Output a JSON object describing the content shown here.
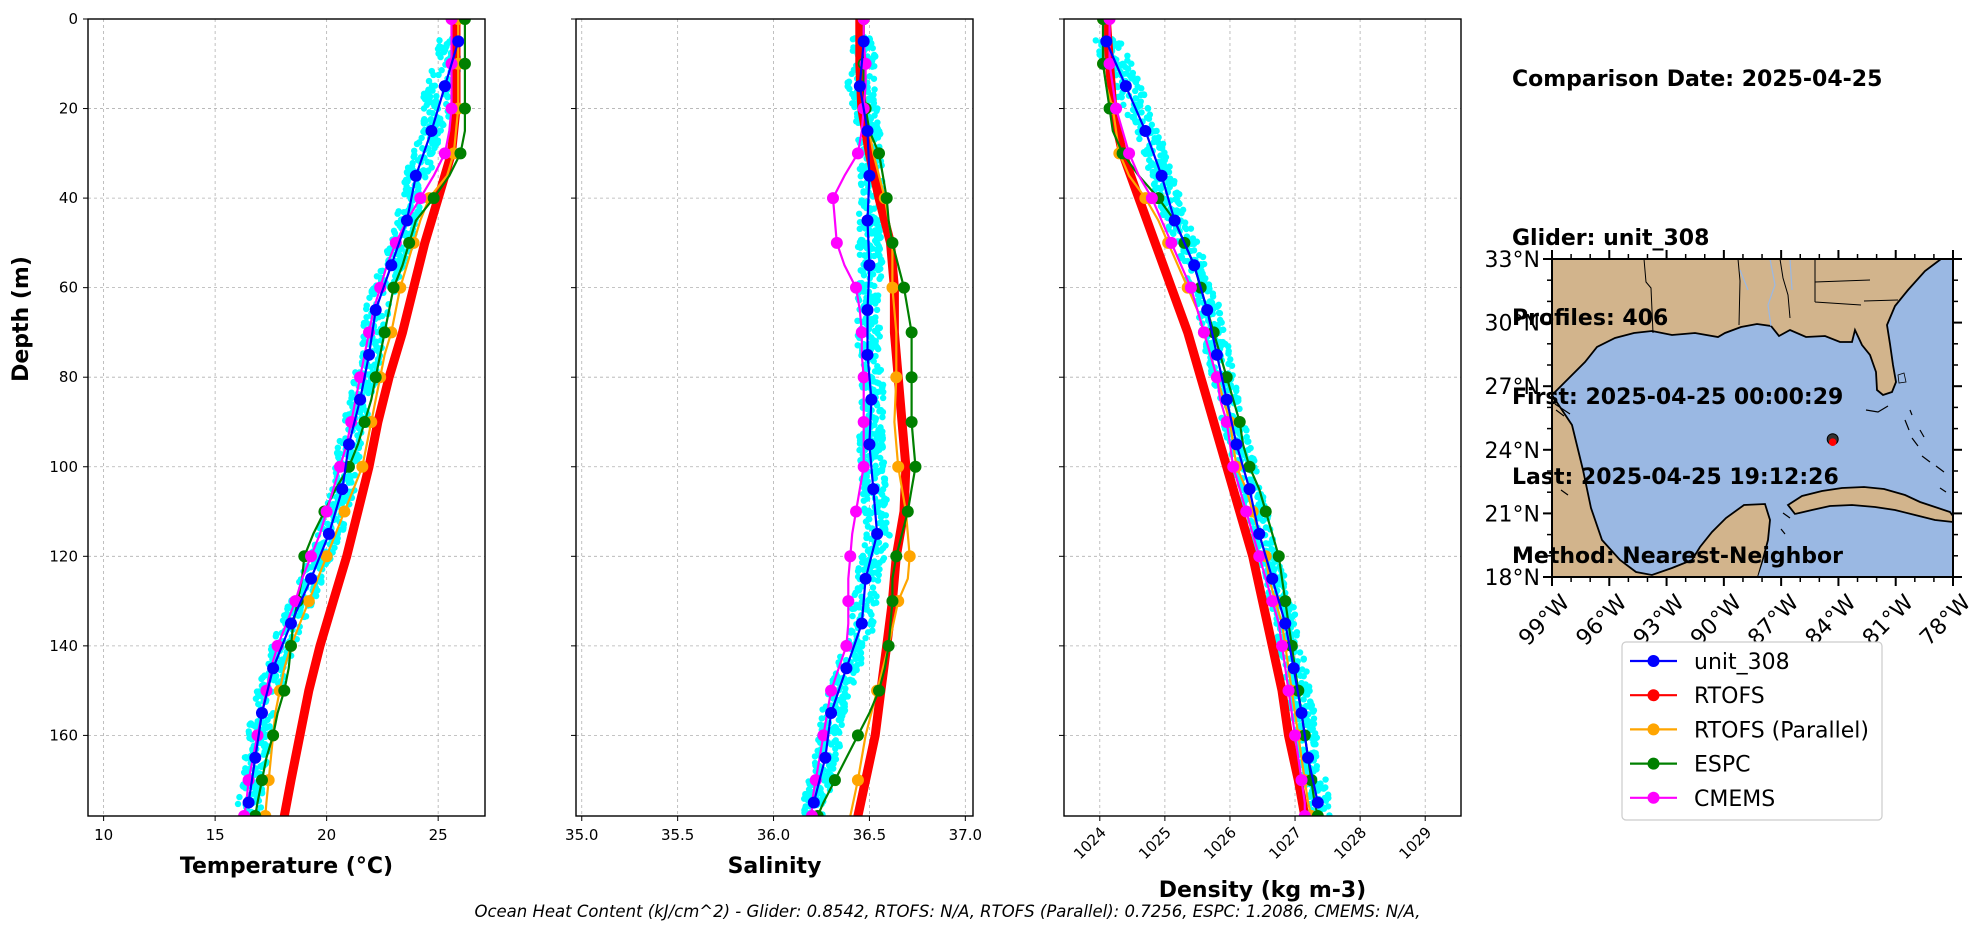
{
  "info": {
    "comparison_date": "Comparison Date: 2025-04-25",
    "glider": "Glider: unit_308",
    "profiles": "Profiles: 406",
    "first": "First: 2025-04-25 00:00:29",
    "last": "Last: 2025-04-25 19:12:26",
    "method": "Method: Nearest-Neighbor"
  },
  "footer": "Ocean Heat Content (kJ/cm^2) - Glider: 0.8542,  RTOFS: N/A,  RTOFS (Parallel): 0.7256,  ESPC: 1.2086,  CMEMS: N/A,",
  "colors": {
    "scatter": "#00ffff",
    "unit_308": "#0000ff",
    "RTOFS": "#ff0000",
    "RTOFS (Parallel)": "#ffa500",
    "ESPC": "#008000",
    "CMEMS": "#ff00ff",
    "land": "#d2b48c",
    "water": "#9ab8e3"
  },
  "legend": [
    "unit_308",
    "RTOFS",
    "RTOFS (Parallel)",
    "ESPC",
    "CMEMS"
  ],
  "chart_data": [
    {
      "type": "line",
      "xlabel": "Temperature (°C)",
      "ylabel": "Depth (m)",
      "xlim": [
        9.3,
        27.1
      ],
      "ylim": [
        178,
        0
      ],
      "xticks": [
        "10",
        "15",
        "20",
        "25"
      ],
      "yticks": [
        "0",
        "20",
        "40",
        "60",
        "80",
        "100",
        "120",
        "140",
        "160"
      ],
      "grid": true,
      "series": [
        {
          "name": "unit_308",
          "depth": [
            5,
            15,
            25,
            35,
            45,
            55,
            65,
            75,
            85,
            95,
            105,
            115,
            125,
            135,
            145,
            155,
            165,
            175
          ],
          "values": [
            25.9,
            25.3,
            24.7,
            24.0,
            23.6,
            22.9,
            22.2,
            21.9,
            21.5,
            21.0,
            20.7,
            20.1,
            19.3,
            18.4,
            17.6,
            17.1,
            16.8,
            16.5
          ]
        },
        {
          "name": "RTOFS",
          "depth": [
            0,
            10,
            20,
            30,
            40,
            50,
            60,
            70,
            80,
            90,
            100,
            110,
            120,
            130,
            140,
            150,
            160,
            170,
            178
          ],
          "values": [
            25.8,
            25.8,
            25.8,
            25.6,
            25.0,
            24.4,
            23.9,
            23.4,
            22.8,
            22.3,
            21.9,
            21.4,
            20.9,
            20.3,
            19.7,
            19.2,
            18.8,
            18.4,
            18.1
          ]
        },
        {
          "name": "RTOFS (Parallel)",
          "depth": [
            0,
            5,
            10,
            15,
            20,
            25,
            30,
            35,
            40,
            45,
            50,
            55,
            60,
            65,
            70,
            75,
            80,
            85,
            90,
            95,
            100,
            105,
            110,
            115,
            120,
            125,
            130,
            135,
            140,
            145,
            150,
            155,
            160,
            165,
            170,
            175,
            178
          ],
          "values": [
            25.9,
            25.9,
            25.9,
            25.9,
            25.9,
            25.8,
            25.7,
            25.4,
            24.6,
            24.2,
            23.9,
            23.6,
            23.3,
            23.1,
            22.9,
            22.6,
            22.4,
            22.2,
            22.0,
            21.8,
            21.6,
            21.2,
            20.8,
            20.4,
            20.0,
            19.6,
            19.2,
            18.8,
            18.4,
            18.1,
            17.9,
            17.7,
            17.6,
            17.5,
            17.4,
            17.3,
            17.25
          ]
        },
        {
          "name": "ESPC",
          "depth": [
            0,
            5,
            10,
            15,
            20,
            25,
            30,
            35,
            40,
            45,
            50,
            55,
            60,
            65,
            70,
            75,
            80,
            85,
            90,
            95,
            100,
            105,
            110,
            115,
            120,
            125,
            130,
            135,
            140,
            145,
            150,
            155,
            160,
            165,
            170,
            175,
            178
          ],
          "values": [
            26.2,
            26.2,
            26.2,
            26.2,
            26.2,
            26.2,
            26.0,
            25.5,
            24.8,
            24.0,
            23.7,
            23.4,
            23.0,
            22.8,
            22.6,
            22.4,
            22.2,
            22.0,
            21.7,
            21.4,
            21.0,
            20.4,
            19.9,
            19.4,
            19.0,
            18.9,
            18.7,
            18.5,
            18.4,
            18.3,
            18.1,
            17.8,
            17.6,
            17.3,
            17.1,
            16.9,
            16.8
          ]
        },
        {
          "name": "CMEMS",
          "depth": [
            0,
            5,
            10,
            15,
            20,
            25,
            30,
            35,
            40,
            45,
            50,
            55,
            60,
            65,
            70,
            75,
            80,
            85,
            90,
            95,
            100,
            105,
            110,
            115,
            120,
            125,
            130,
            135,
            140,
            145,
            150,
            155,
            160,
            165,
            170,
            175,
            178
          ],
          "values": [
            25.6,
            25.6,
            25.6,
            25.6,
            25.6,
            25.5,
            25.3,
            24.8,
            24.2,
            23.6,
            23.1,
            22.7,
            22.4,
            22.1,
            21.9,
            21.7,
            21.5,
            21.3,
            21.1,
            20.9,
            20.6,
            20.3,
            20.0,
            19.7,
            19.3,
            18.9,
            18.6,
            18.2,
            17.8,
            17.5,
            17.3,
            17.1,
            16.9,
            16.7,
            16.5,
            16.4,
            16.3
          ]
        }
      ]
    },
    {
      "type": "line",
      "xlabel": "Salinity",
      "ylabel": "",
      "xlim": [
        34.97,
        37.04
      ],
      "ylim": [
        178,
        0
      ],
      "xticks": [
        "35.0",
        "35.5",
        "36.0",
        "36.5",
        "37.0"
      ],
      "grid": true,
      "series": [
        {
          "name": "unit_308",
          "depth": [
            5,
            15,
            25,
            35,
            45,
            55,
            65,
            75,
            85,
            95,
            105,
            115,
            125,
            135,
            145,
            155,
            165,
            175
          ],
          "values": [
            36.47,
            36.45,
            36.49,
            36.5,
            36.49,
            36.5,
            36.49,
            36.49,
            36.51,
            36.5,
            36.52,
            36.54,
            36.48,
            36.46,
            36.38,
            36.3,
            36.27,
            36.21
          ]
        },
        {
          "name": "RTOFS",
          "depth": [
            0,
            10,
            20,
            30,
            40,
            50,
            60,
            70,
            80,
            90,
            100,
            110,
            120,
            130,
            140,
            150,
            160,
            170,
            178
          ],
          "values": [
            36.45,
            36.45,
            36.46,
            36.5,
            36.55,
            36.61,
            36.63,
            36.63,
            36.65,
            36.67,
            36.69,
            36.68,
            36.64,
            36.62,
            36.59,
            36.56,
            36.53,
            36.48,
            36.44
          ]
        },
        {
          "name": "RTOFS (Parallel)",
          "depth": [
            0,
            10,
            20,
            30,
            40,
            50,
            60,
            70,
            80,
            90,
            100,
            110,
            120,
            125,
            130,
            140,
            150,
            160,
            170,
            178
          ],
          "values": [
            36.47,
            36.47,
            36.48,
            36.52,
            36.58,
            36.62,
            36.62,
            36.64,
            36.64,
            36.63,
            36.65,
            36.69,
            36.71,
            36.7,
            36.65,
            36.6,
            36.54,
            36.48,
            36.44,
            36.4
          ]
        },
        {
          "name": "ESPC",
          "depth": [
            0,
            5,
            10,
            15,
            20,
            25,
            30,
            35,
            40,
            45,
            50,
            55,
            60,
            65,
            70,
            75,
            80,
            85,
            90,
            95,
            100,
            105,
            110,
            115,
            120,
            125,
            130,
            135,
            140,
            145,
            150,
            155,
            160,
            165,
            170,
            175,
            178
          ],
          "values": [
            36.47,
            36.47,
            36.47,
            36.47,
            36.48,
            36.5,
            36.55,
            36.57,
            36.59,
            36.6,
            36.62,
            36.65,
            36.68,
            36.7,
            36.72,
            36.72,
            36.72,
            36.72,
            36.72,
            36.73,
            36.74,
            36.72,
            36.7,
            36.67,
            36.64,
            36.62,
            36.62,
            36.61,
            36.6,
            36.58,
            36.55,
            36.5,
            36.44,
            36.38,
            36.32,
            36.26,
            36.23
          ]
        },
        {
          "name": "CMEMS",
          "depth": [
            0,
            5,
            10,
            15,
            20,
            25,
            30,
            35,
            40,
            45,
            50,
            55,
            60,
            65,
            70,
            75,
            80,
            85,
            90,
            95,
            100,
            105,
            110,
            115,
            120,
            125,
            130,
            135,
            140,
            145,
            150,
            155,
            160,
            165,
            170,
            175,
            178
          ],
          "values": [
            36.47,
            36.47,
            36.48,
            36.48,
            36.47,
            36.46,
            36.44,
            36.37,
            36.31,
            36.32,
            36.33,
            36.37,
            36.43,
            36.45,
            36.46,
            36.46,
            36.47,
            36.47,
            36.47,
            36.47,
            36.47,
            36.45,
            36.43,
            36.41,
            36.4,
            36.39,
            36.39,
            36.39,
            36.38,
            36.34,
            36.3,
            36.28,
            36.26,
            36.24,
            36.22,
            36.2,
            36.2
          ]
        }
      ]
    },
    {
      "type": "line",
      "xlabel": "Density (kg m-3)",
      "ylabel": "",
      "xlim": [
        1023.45,
        1029.55
      ],
      "ylim": [
        178,
        0
      ],
      "xticks": [
        "1024",
        "1025",
        "1026",
        "1027",
        "1028",
        "1029"
      ],
      "grid": true,
      "series": [
        {
          "name": "unit_308",
          "depth": [
            5,
            15,
            25,
            35,
            45,
            55,
            65,
            75,
            85,
            95,
            105,
            115,
            125,
            135,
            145,
            155,
            165,
            175
          ],
          "values": [
            1024.1,
            1024.4,
            1024.7,
            1024.95,
            1025.15,
            1025.45,
            1025.65,
            1025.8,
            1025.95,
            1026.1,
            1026.3,
            1026.45,
            1026.65,
            1026.85,
            1026.98,
            1027.1,
            1027.2,
            1027.35
          ]
        },
        {
          "name": "RTOFS",
          "depth": [
            0,
            10,
            20,
            30,
            40,
            50,
            60,
            70,
            80,
            90,
            100,
            110,
            120,
            130,
            140,
            150,
            160,
            170,
            178
          ],
          "values": [
            1024.1,
            1024.15,
            1024.2,
            1024.35,
            1024.6,
            1024.85,
            1025.1,
            1025.35,
            1025.55,
            1025.75,
            1025.95,
            1026.15,
            1026.35,
            1026.5,
            1026.65,
            1026.8,
            1026.9,
            1027.05,
            1027.15
          ]
        },
        {
          "name": "RTOFS (Parallel)",
          "depth": [
            0,
            5,
            10,
            15,
            20,
            25,
            30,
            35,
            40,
            45,
            50,
            55,
            60,
            65,
            70,
            75,
            80,
            85,
            90,
            95,
            100,
            105,
            110,
            115,
            120,
            125,
            130,
            135,
            140,
            145,
            150,
            155,
            160,
            165,
            170,
            175,
            178
          ],
          "values": [
            1024.05,
            1024.05,
            1024.05,
            1024.1,
            1024.2,
            1024.25,
            1024.3,
            1024.45,
            1024.7,
            1024.9,
            1025.05,
            1025.2,
            1025.35,
            1025.5,
            1025.6,
            1025.7,
            1025.8,
            1025.9,
            1026.0,
            1026.05,
            1026.1,
            1026.25,
            1026.35,
            1026.45,
            1026.55,
            1026.6,
            1026.7,
            1026.8,
            1026.85,
            1026.9,
            1026.95,
            1027.0,
            1027.05,
            1027.1,
            1027.15,
            1027.2,
            1027.25
          ]
        },
        {
          "name": "ESPC",
          "depth": [
            0,
            5,
            10,
            15,
            20,
            25,
            30,
            35,
            40,
            45,
            50,
            55,
            60,
            65,
            70,
            75,
            80,
            85,
            90,
            95,
            100,
            105,
            110,
            115,
            120,
            125,
            130,
            135,
            140,
            145,
            150,
            155,
            160,
            165,
            170,
            175,
            178
          ],
          "values": [
            1024.05,
            1024.05,
            1024.05,
            1024.1,
            1024.15,
            1024.2,
            1024.35,
            1024.6,
            1024.9,
            1025.15,
            1025.3,
            1025.45,
            1025.55,
            1025.65,
            1025.75,
            1025.85,
            1025.95,
            1026.05,
            1026.15,
            1026.2,
            1026.3,
            1026.45,
            1026.55,
            1026.65,
            1026.75,
            1026.8,
            1026.85,
            1026.9,
            1026.95,
            1027.0,
            1027.05,
            1027.1,
            1027.15,
            1027.2,
            1027.25,
            1027.3,
            1027.35
          ]
        },
        {
          "name": "CMEMS",
          "depth": [
            0,
            5,
            10,
            15,
            20,
            25,
            30,
            35,
            40,
            45,
            50,
            55,
            60,
            65,
            70,
            75,
            80,
            85,
            90,
            95,
            100,
            105,
            110,
            115,
            120,
            125,
            130,
            135,
            140,
            145,
            150,
            155,
            160,
            165,
            170,
            175,
            178
          ],
          "values": [
            1024.15,
            1024.15,
            1024.15,
            1024.2,
            1024.25,
            1024.35,
            1024.45,
            1024.6,
            1024.8,
            1024.95,
            1025.1,
            1025.25,
            1025.4,
            1025.5,
            1025.6,
            1025.7,
            1025.8,
            1025.85,
            1025.95,
            1026.0,
            1026.05,
            1026.15,
            1026.25,
            1026.35,
            1026.45,
            1026.55,
            1026.65,
            1026.75,
            1026.8,
            1026.85,
            1026.9,
            1026.95,
            1027.0,
            1027.05,
            1027.1,
            1027.15,
            1027.15
          ]
        }
      ]
    }
  ],
  "map": {
    "lon_range": [
      -99,
      -78
    ],
    "lat_range": [
      18,
      33
    ],
    "lon_ticks": [
      "99°W",
      "96°W",
      "93°W",
      "90°W",
      "87°W",
      "84°W",
      "81°W",
      "78°W"
    ],
    "lat_ticks": [
      "33°N",
      "30°N",
      "27°N",
      "24°N",
      "21°N",
      "18°N"
    ],
    "lon_values": [
      -99,
      -96,
      -93,
      -90,
      -87,
      -84,
      -81,
      -78
    ],
    "lat_values": [
      33,
      30,
      27,
      24,
      21,
      18
    ],
    "glider_position": [
      -84.3,
      24.5
    ]
  }
}
